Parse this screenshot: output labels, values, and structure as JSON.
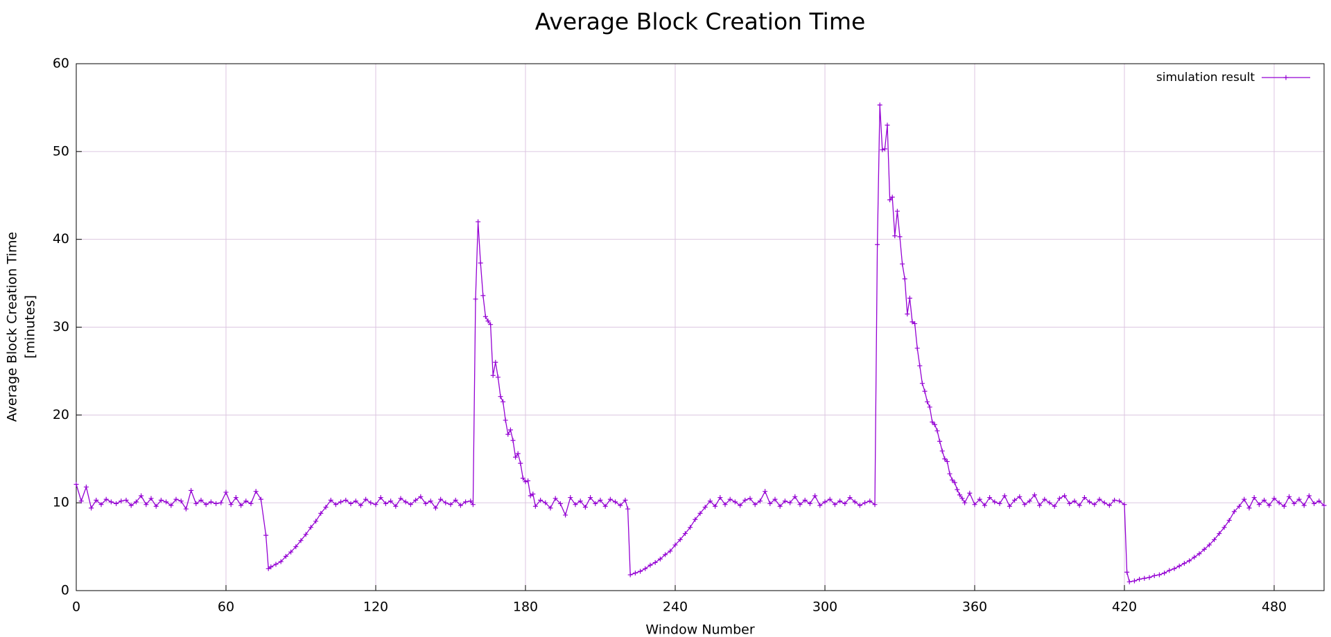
{
  "chart_data": {
    "type": "line",
    "title": "Average Block Creation Time",
    "xlabel": "Window Number",
    "ylabel": [
      "Average Block Creation Time",
      "[minutes]"
    ],
    "xlim": [
      0,
      500
    ],
    "xticks": [
      0,
      60,
      120,
      180,
      240,
      300,
      360,
      420,
      480
    ],
    "ylim": [
      0,
      60
    ],
    "yticks": [
      0,
      10,
      20,
      30,
      40,
      50,
      60
    ],
    "grid": true,
    "legend": "upper right",
    "x": [
      0,
      2,
      4,
      6,
      8,
      10,
      12,
      14,
      16,
      18,
      20,
      22,
      24,
      26,
      28,
      30,
      32,
      34,
      36,
      38,
      40,
      42,
      44,
      46,
      48,
      50,
      52,
      54,
      56,
      58,
      60,
      62,
      64,
      66,
      68,
      70,
      72,
      74,
      76,
      77,
      78,
      80,
      82,
      84,
      86,
      88,
      90,
      92,
      94,
      96,
      98,
      100,
      102,
      104,
      106,
      108,
      110,
      112,
      114,
      116,
      118,
      120,
      122,
      124,
      126,
      128,
      130,
      132,
      134,
      136,
      138,
      140,
      142,
      144,
      146,
      148,
      150,
      152,
      154,
      156,
      158,
      159,
      160,
      161,
      162,
      163,
      164,
      165,
      166,
      167,
      168,
      169,
      170,
      171,
      172,
      173,
      174,
      175,
      176,
      177,
      178,
      179,
      180,
      181,
      182,
      183,
      184,
      186,
      188,
      190,
      192,
      194,
      196,
      198,
      200,
      202,
      204,
      206,
      208,
      210,
      212,
      214,
      216,
      218,
      220,
      221,
      222,
      224,
      226,
      228,
      230,
      232,
      234,
      236,
      238,
      240,
      242,
      244,
      246,
      248,
      250,
      252,
      254,
      256,
      258,
      260,
      262,
      264,
      266,
      268,
      270,
      272,
      274,
      276,
      278,
      280,
      282,
      284,
      286,
      288,
      290,
      292,
      294,
      296,
      298,
      300,
      302,
      304,
      306,
      308,
      310,
      312,
      314,
      316,
      318,
      320,
      321,
      322,
      323,
      324,
      325,
      326,
      327,
      328,
      329,
      330,
      331,
      332,
      333,
      334,
      335,
      336,
      337,
      338,
      339,
      340,
      341,
      342,
      343,
      344,
      345,
      346,
      347,
      348,
      349,
      350,
      351,
      352,
      353,
      354,
      355,
      356,
      358,
      360,
      362,
      364,
      366,
      368,
      370,
      372,
      374,
      376,
      378,
      380,
      382,
      384,
      386,
      388,
      390,
      392,
      394,
      396,
      398,
      400,
      402,
      404,
      406,
      408,
      410,
      412,
      414,
      416,
      418,
      420,
      421,
      422,
      424,
      426,
      428,
      430,
      432,
      434,
      436,
      438,
      440,
      442,
      444,
      446,
      448,
      450,
      452,
      454,
      456,
      458,
      460,
      462,
      464,
      466,
      468,
      470,
      472,
      474,
      476,
      478,
      480,
      482,
      484,
      486,
      488,
      490,
      492,
      494,
      496,
      498,
      500
    ],
    "series": [
      {
        "name": "simulation result",
        "color": "#9400d3",
        "values": [
          12.1,
          10.2,
          11.8,
          9.4,
          10.3,
          9.8,
          10.4,
          10.1,
          9.9,
          10.2,
          10.3,
          9.7,
          10.1,
          10.8,
          9.8,
          10.5,
          9.6,
          10.3,
          10.1,
          9.7,
          10.4,
          10.2,
          9.3,
          11.4,
          9.9,
          10.3,
          9.8,
          10.1,
          9.9,
          10.0,
          11.2,
          9.8,
          10.6,
          9.7,
          10.2,
          9.9,
          11.3,
          10.4,
          6.3,
          2.5,
          2.7,
          3.0,
          3.3,
          3.9,
          4.4,
          5.0,
          5.7,
          6.4,
          7.2,
          7.9,
          8.8,
          9.5,
          10.3,
          9.8,
          10.1,
          10.3,
          9.9,
          10.2,
          9.7,
          10.4,
          10.0,
          9.8,
          10.6,
          9.9,
          10.2,
          9.6,
          10.5,
          10.1,
          9.8,
          10.3,
          10.7,
          9.9,
          10.2,
          9.4,
          10.4,
          10.0,
          9.8,
          10.3,
          9.7,
          10.1,
          10.2,
          9.8,
          33.2,
          42.0,
          37.3,
          33.6,
          31.2,
          30.7,
          30.3,
          24.5,
          26.0,
          24.3,
          22.1,
          21.5,
          19.4,
          17.8,
          18.3,
          17.1,
          15.2,
          15.6,
          14.5,
          12.8,
          12.4,
          12.5,
          10.8,
          11.0,
          9.6,
          10.3,
          10.0,
          9.4,
          10.5,
          9.9,
          8.6,
          10.6,
          9.8,
          10.2,
          9.5,
          10.6,
          9.9,
          10.3,
          9.6,
          10.4,
          10.1,
          9.7,
          10.3,
          9.3,
          1.8,
          2.0,
          2.2,
          2.5,
          2.9,
          3.2,
          3.6,
          4.1,
          4.5,
          5.2,
          5.8,
          6.5,
          7.2,
          8.1,
          8.8,
          9.5,
          10.2,
          9.6,
          10.6,
          9.8,
          10.4,
          10.1,
          9.7,
          10.3,
          10.5,
          9.8,
          10.2,
          11.3,
          9.9,
          10.4,
          9.6,
          10.2,
          10.0,
          10.7,
          9.8,
          10.3,
          9.9,
          10.8,
          9.7,
          10.1,
          10.4,
          9.8,
          10.2,
          9.9,
          10.6,
          10.1,
          9.7,
          10.0,
          10.2,
          9.8,
          39.4,
          55.3,
          50.2,
          50.3,
          53.0,
          44.5,
          44.8,
          40.4,
          43.2,
          40.3,
          37.2,
          35.5,
          31.5,
          33.3,
          30.6,
          30.4,
          27.6,
          25.6,
          23.6,
          22.7,
          21.5,
          20.9,
          19.2,
          18.9,
          18.2,
          17.0,
          15.9,
          15.0,
          14.7,
          13.3,
          12.6,
          12.3,
          11.5,
          10.9,
          10.5,
          10.0,
          11.1,
          9.8,
          10.4,
          9.7,
          10.6,
          10.1,
          9.9,
          10.8,
          9.6,
          10.3,
          10.7,
          9.8,
          10.2,
          10.9,
          9.7,
          10.4,
          10.0,
          9.6,
          10.5,
          10.8,
          9.9,
          10.2,
          9.7,
          10.6,
          10.1,
          9.8,
          10.4,
          10.0,
          9.7,
          10.3,
          10.2,
          9.8,
          2.1,
          1.0,
          1.1,
          1.3,
          1.4,
          1.5,
          1.7,
          1.8,
          2.0,
          2.3,
          2.5,
          2.8,
          3.1,
          3.4,
          3.8,
          4.2,
          4.7,
          5.2,
          5.8,
          6.5,
          7.2,
          8.0,
          9.0,
          9.6,
          10.4,
          9.4,
          10.6,
          9.8,
          10.3,
          9.7,
          10.5,
          10.0,
          9.6,
          10.7,
          9.9,
          10.4,
          9.7,
          10.8,
          9.9,
          10.2,
          9.7
        ]
      }
    ]
  }
}
